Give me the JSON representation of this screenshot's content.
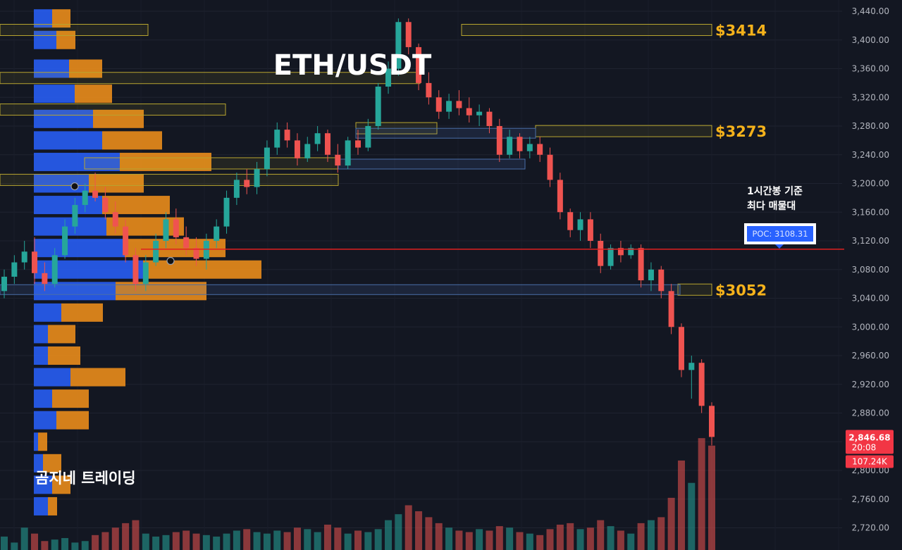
{
  "chart_data": {
    "type": "candlestick",
    "title": "ETH/USDT",
    "watermark": "곰지네 트레이딩",
    "y_axis": {
      "ylim": [
        2700,
        3450
      ],
      "ticks": [
        "3,440.00",
        "3,400.00",
        "3,360.00",
        "3,320.00",
        "3,280.00",
        "3,240.00",
        "3,200.00",
        "3,160.00",
        "3,120.00",
        "3,080.00",
        "3,040.00",
        "3,000.00",
        "2,960.00",
        "2,920.00",
        "2,880.00",
        "2,840.00",
        "2,800.00",
        "2,760.00",
        "2,720.00"
      ]
    },
    "tick_values": [
      3440,
      3400,
      3360,
      3320,
      3280,
      3240,
      3200,
      3160,
      3120,
      3080,
      3040,
      3000,
      2960,
      2920,
      2880,
      2840,
      2800,
      2760,
      2720
    ],
    "levels": [
      {
        "label": "$3414",
        "price": 3414
      },
      {
        "label": "$3273",
        "price": 3273
      },
      {
        "label": "$3052",
        "price": 3052
      }
    ],
    "poc": {
      "annotation_line1": "1시간봉 기준",
      "annotation_line2": "최다 매물대",
      "label": "POC: 3108.31",
      "price": 3108.31
    },
    "last_price": {
      "price_text": "2,846.68",
      "price": 2846.68,
      "countdown": "20:08"
    },
    "last_volume": "107.24K",
    "candles_ohlc": [
      [
        3050,
        3080,
        3040,
        3070
      ],
      [
        3070,
        3100,
        3060,
        3090
      ],
      [
        3090,
        3120,
        3080,
        3105
      ],
      [
        3105,
        3125,
        3060,
        3075
      ],
      [
        3075,
        3090,
        3050,
        3060
      ],
      [
        3060,
        3110,
        3055,
        3100
      ],
      [
        3100,
        3150,
        3095,
        3140
      ],
      [
        3140,
        3180,
        3130,
        3170
      ],
      [
        3170,
        3200,
        3160,
        3190
      ],
      [
        3190,
        3215,
        3175,
        3180
      ],
      [
        3180,
        3195,
        3150,
        3160
      ],
      [
        3160,
        3175,
        3130,
        3140
      ],
      [
        3140,
        3150,
        3090,
        3100
      ],
      [
        3100,
        3110,
        3050,
        3060
      ],
      [
        3060,
        3100,
        3050,
        3090
      ],
      [
        3090,
        3130,
        3085,
        3120
      ],
      [
        3120,
        3160,
        3110,
        3150
      ],
      [
        3150,
        3165,
        3115,
        3125
      ],
      [
        3125,
        3140,
        3100,
        3110
      ],
      [
        3110,
        3125,
        3085,
        3095
      ],
      [
        3095,
        3130,
        3080,
        3120
      ],
      [
        3120,
        3150,
        3110,
        3140
      ],
      [
        3140,
        3190,
        3130,
        3180
      ],
      [
        3180,
        3215,
        3170,
        3205
      ],
      [
        3205,
        3220,
        3185,
        3195
      ],
      [
        3195,
        3230,
        3185,
        3220
      ],
      [
        3220,
        3260,
        3210,
        3250
      ],
      [
        3250,
        3285,
        3240,
        3275
      ],
      [
        3275,
        3285,
        3250,
        3260
      ],
      [
        3260,
        3270,
        3225,
        3235
      ],
      [
        3235,
        3265,
        3230,
        3255
      ],
      [
        3255,
        3280,
        3245,
        3270
      ],
      [
        3270,
        3275,
        3230,
        3240
      ],
      [
        3240,
        3255,
        3215,
        3225
      ],
      [
        3225,
        3265,
        3220,
        3260
      ],
      [
        3260,
        3275,
        3240,
        3250
      ],
      [
        3250,
        3290,
        3245,
        3280
      ],
      [
        3280,
        3340,
        3275,
        3335
      ],
      [
        3335,
        3370,
        3325,
        3360
      ],
      [
        3360,
        3430,
        3350,
        3425
      ],
      [
        3425,
        3430,
        3380,
        3390
      ],
      [
        3390,
        3395,
        3330,
        3340
      ],
      [
        3340,
        3355,
        3310,
        3320
      ],
      [
        3320,
        3330,
        3290,
        3300
      ],
      [
        3300,
        3325,
        3290,
        3315
      ],
      [
        3315,
        3330,
        3295,
        3305
      ],
      [
        3305,
        3320,
        3285,
        3295
      ],
      [
        3295,
        3310,
        3280,
        3300
      ],
      [
        3300,
        3305,
        3270,
        3280
      ],
      [
        3280,
        3290,
        3230,
        3240
      ],
      [
        3240,
        3275,
        3235,
        3265
      ],
      [
        3265,
        3270,
        3235,
        3245
      ],
      [
        3245,
        3265,
        3235,
        3255
      ],
      [
        3255,
        3265,
        3230,
        3240
      ],
      [
        3240,
        3250,
        3195,
        3205
      ],
      [
        3205,
        3215,
        3150,
        3160
      ],
      [
        3160,
        3165,
        3125,
        3135
      ],
      [
        3135,
        3160,
        3120,
        3150
      ],
      [
        3150,
        3160,
        3110,
        3120
      ],
      [
        3120,
        3130,
        3075,
        3085
      ],
      [
        3085,
        3115,
        3080,
        3110
      ],
      [
        3110,
        3120,
        3090,
        3100
      ],
      [
        3100,
        3115,
        3095,
        3110
      ],
      [
        3110,
        3115,
        3055,
        3065
      ],
      [
        3065,
        3090,
        3050,
        3080
      ],
      [
        3080,
        3085,
        3040,
        3050
      ],
      [
        3050,
        3060,
        2990,
        3000
      ],
      [
        3000,
        3005,
        2930,
        2940
      ],
      [
        2940,
        2960,
        2900,
        2950
      ],
      [
        2950,
        2955,
        2880,
        2890
      ],
      [
        2890,
        2895,
        2835,
        2846.68
      ]
    ],
    "volumes": [
      18,
      10,
      30,
      22,
      12,
      14,
      16,
      10,
      12,
      20,
      24,
      30,
      36,
      40,
      22,
      18,
      20,
      24,
      26,
      22,
      20,
      18,
      22,
      26,
      28,
      24,
      22,
      26,
      24,
      30,
      28,
      24,
      34,
      30,
      22,
      26,
      24,
      28,
      40,
      48,
      60,
      52,
      44,
      36,
      30,
      26,
      24,
      28,
      26,
      32,
      30,
      24,
      22,
      20,
      28,
      34,
      36,
      28,
      30,
      40,
      32,
      26,
      22,
      36,
      40,
      44,
      70,
      120,
      90,
      150,
      140
    ],
    "profile_rows": [
      {
        "price": 3430,
        "buy": 26,
        "sell": 26
      },
      {
        "price": 3400,
        "buy": 32,
        "sell": 27
      },
      {
        "price": 3360,
        "buy": 50,
        "sell": 47
      },
      {
        "price": 3325,
        "buy": 58,
        "sell": 53
      },
      {
        "price": 3290,
        "buy": 84,
        "sell": 72
      },
      {
        "price": 3260,
        "buy": 97,
        "sell": 85
      },
      {
        "price": 3230,
        "buy": 122,
        "sell": 130
      },
      {
        "price": 3200,
        "buy": 78,
        "sell": 78
      },
      {
        "price": 3170,
        "buy": 97,
        "sell": 96
      },
      {
        "price": 3140,
        "buy": 103,
        "sell": 110
      },
      {
        "price": 3110,
        "buy": 129,
        "sell": 143
      },
      {
        "price": 3080,
        "buy": 155,
        "sell": 168
      },
      {
        "price": 3050,
        "buy": 116,
        "sell": 129
      },
      {
        "price": 3020,
        "buy": 39,
        "sell": 59
      },
      {
        "price": 2990,
        "buy": 20,
        "sell": 39
      },
      {
        "price": 2960,
        "buy": 20,
        "sell": 46
      },
      {
        "price": 2930,
        "buy": 52,
        "sell": 78
      },
      {
        "price": 2900,
        "buy": 26,
        "sell": 52
      },
      {
        "price": 2870,
        "buy": 32,
        "sell": 46
      },
      {
        "price": 2840,
        "buy": 6,
        "sell": 13
      },
      {
        "price": 2810,
        "buy": 13,
        "sell": 26
      },
      {
        "price": 2780,
        "buy": 26,
        "sell": 26
      },
      {
        "price": 2750,
        "buy": 20,
        "sell": 13
      }
    ],
    "colors": {
      "background": "#131722",
      "up": "#26a69a",
      "down": "#ef5350",
      "buy_profile": "#2962ff",
      "sell_profile": "#f7931a",
      "level_text": "#f5b21b",
      "poc_line": "#e02020",
      "poc_label_bg": "#2962ff",
      "last_price_bg": "#f23645"
    }
  }
}
